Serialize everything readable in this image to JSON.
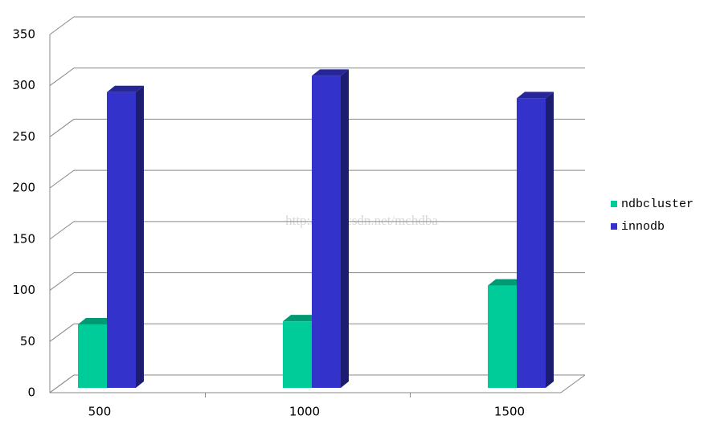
{
  "chart_data": {
    "type": "bar3d",
    "categories": [
      "500",
      "1000",
      "1500"
    ],
    "series": [
      {
        "name": "ndbcluster",
        "color": "#00cc99",
        "values": [
          62,
          65,
          100
        ]
      },
      {
        "name": "innodb",
        "color": "#3333cc",
        "values": [
          289,
          305,
          283
        ]
      }
    ],
    "ylim": [
      0,
      350
    ],
    "yticks": [
      0,
      50,
      100,
      150,
      200,
      250,
      300,
      350
    ],
    "grid": true,
    "legend": "right",
    "watermark": "http://blog.csdn.net/mchdba"
  }
}
